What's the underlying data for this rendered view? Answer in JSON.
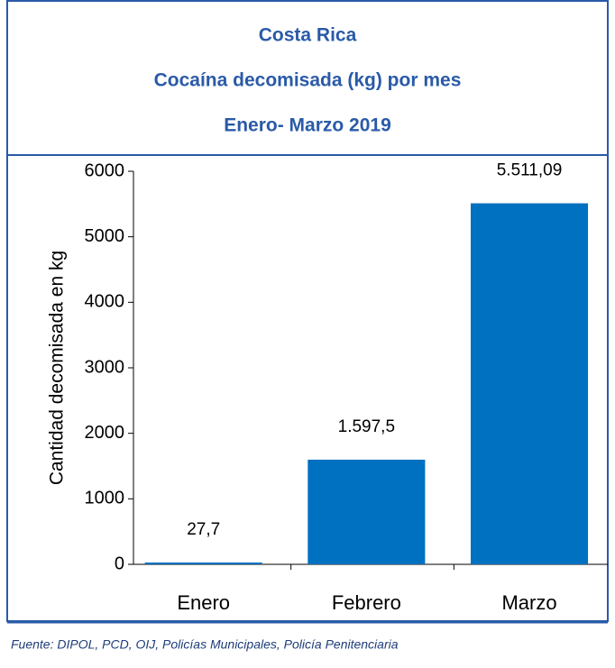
{
  "chart_data": {
    "type": "bar",
    "title_lines": [
      "Costa Rica",
      "Cocaína decomisada (kg) por mes",
      "Enero- Marzo 2019"
    ],
    "y_label": "Cantidad decomisada en kg",
    "categories": [
      "Enero",
      "Febrero",
      "Marzo"
    ],
    "values": [
      27.7,
      1597.5,
      5511.09
    ],
    "value_labels": [
      "27,7",
      "1.597,5",
      "5.511,09"
    ],
    "color": "#0070c0",
    "ylim": [
      0,
      6000
    ],
    "yticks": [
      0,
      1000,
      2000,
      3000,
      4000,
      5000,
      6000
    ],
    "source": "Fuente: DIPOL, PCD, OIJ, Policías Municipales, Policía Penitenciaria"
  }
}
